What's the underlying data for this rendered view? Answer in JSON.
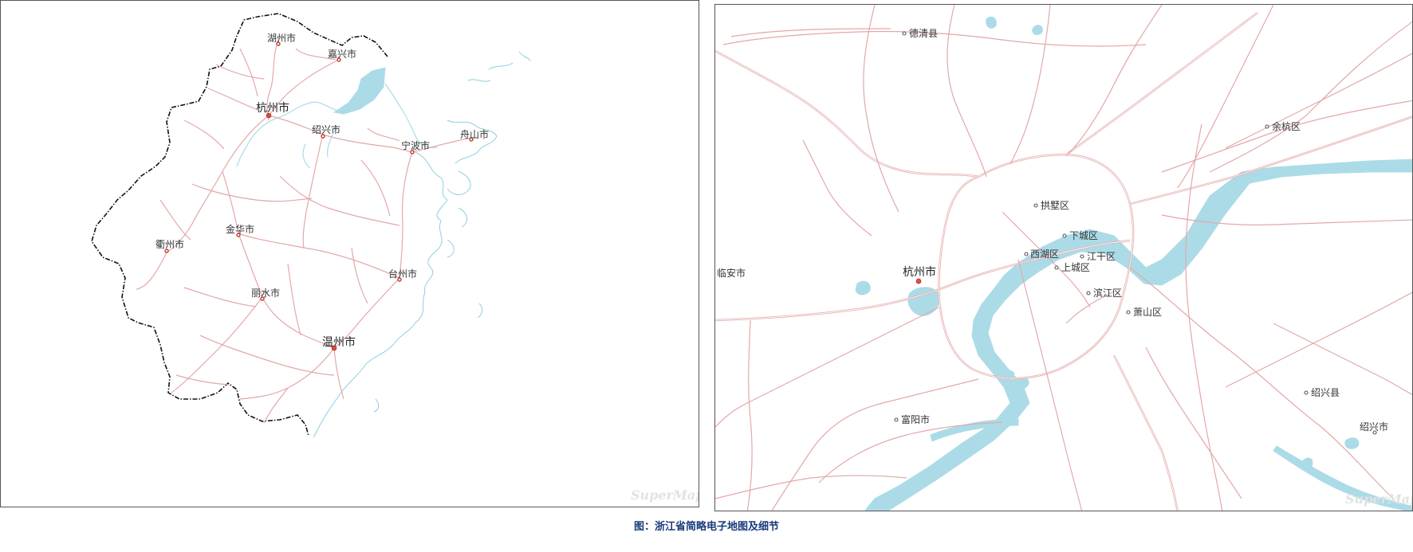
{
  "province_map": {
    "cities": [
      {
        "name": "湖州市"
      },
      {
        "name": "嘉兴市"
      },
      {
        "name": "杭州市"
      },
      {
        "name": "绍兴市"
      },
      {
        "name": "宁波市"
      },
      {
        "name": "舟山市"
      },
      {
        "name": "金华市"
      },
      {
        "name": "衢州市"
      },
      {
        "name": "台州市"
      },
      {
        "name": "丽水市"
      },
      {
        "name": "温州市"
      }
    ],
    "watermark": "SuperMap"
  },
  "detail_map": {
    "places": [
      {
        "name": "德清县"
      },
      {
        "name": "余杭区"
      },
      {
        "name": "拱墅区"
      },
      {
        "name": "下城区"
      },
      {
        "name": "西湖区"
      },
      {
        "name": "江干区"
      },
      {
        "name": "上城区"
      },
      {
        "name": "临安市"
      },
      {
        "name": "杭州市"
      },
      {
        "name": "滨江区"
      },
      {
        "name": "萧山区"
      },
      {
        "name": "绍兴县"
      },
      {
        "name": "富阳市"
      },
      {
        "name": "绍兴市"
      }
    ],
    "watermark": "SuperMap"
  },
  "caption": "图：浙江省简略电子地图及细节",
  "colors": {
    "road": "#e3a8a8",
    "water": "#acdbe8",
    "border": "#111111",
    "caption": "#1a3a7a"
  }
}
